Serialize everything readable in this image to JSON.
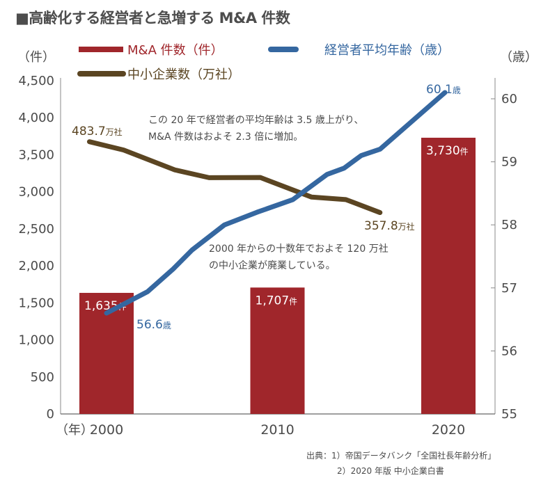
{
  "title": "■高齢化する経営者と急増する M&A 件数",
  "colors": {
    "ma": "#a0262b",
    "age": "#3567a0",
    "sme": "#5b4522",
    "axis": "#888888",
    "text": "#4a4a4a"
  },
  "legend": [
    {
      "label": "M&A 件数（件）",
      "color": "#a0262b"
    },
    {
      "label": "経営者平均年齢（歳）",
      "color": "#3567a0"
    },
    {
      "label": "中小企業数（万社）",
      "color": "#5b4522"
    }
  ],
  "annotations": {
    "note1_line1": "この 20 年で経営者の平均年齢は 3.5 歳上がり、",
    "note1_line2": "M&A 件数はおよそ 2.3 倍に増加。",
    "note2_line1": "2000 年からの十数年でおよそ 120 万社",
    "note2_line2": "の中小企業が廃業している。"
  },
  "source": {
    "line1": "出典：1）帝国データバンク「全国社長年齢分析」",
    "line2": "2）2020 年版 中小企業白書"
  },
  "chart_data": {
    "type": "bar+line",
    "x_unit_label": "（年）",
    "x_ticks": [
      "2000",
      "2010",
      "2020"
    ],
    "left_axis": {
      "label": "（件）",
      "ylim": [
        0,
        4500
      ],
      "ticks": [
        "0",
        "500",
        "1,000",
        "1,500",
        "2,000",
        "2,500",
        "3,000",
        "3,500",
        "4,000",
        "4,500"
      ]
    },
    "right_axis": {
      "label": "（歳）",
      "ylim": [
        55,
        60.3
      ],
      "ticks": [
        "55",
        "56",
        "57",
        "58",
        "59",
        "60"
      ]
    },
    "bars": {
      "name": "M&A 件数（件）",
      "x": [
        2000,
        2010,
        2020
      ],
      "values": [
        1635,
        1707,
        3730
      ],
      "labels": [
        {
          "num": "1,635",
          "unit": "件"
        },
        {
          "num": "1,707",
          "unit": "件"
        },
        {
          "num": "3,730",
          "unit": "件"
        }
      ]
    },
    "age_series": {
      "name": "経営者平均年齢（歳）",
      "axis": "right",
      "x": [
        2000,
        2002.4,
        2003.9,
        2005,
        2006.9,
        2008.8,
        2010.9,
        2012.9,
        2013.9,
        2014.9,
        2016,
        2019.8
      ],
      "values": [
        56.6,
        56.94,
        57.3,
        57.6,
        58.0,
        58.2,
        58.4,
        58.8,
        58.9,
        59.1,
        59.2,
        60.1
      ],
      "start_label": {
        "num": "56.6",
        "unit": "歳"
      },
      "end_label": {
        "num": "60.1",
        "unit": "歳"
      }
    },
    "sme_series": {
      "name": "中小企業数（万社）",
      "x": [
        1999,
        2001,
        2004,
        2006,
        2009,
        2012,
        2014,
        2016
      ],
      "values": [
        483.7,
        469.0,
        433.6,
        419.8,
        420.1,
        385.3,
        380.9,
        357.8
      ],
      "start_label": {
        "num": "483.7",
        "unit": "万社"
      },
      "end_label": {
        "num": "357.8",
        "unit": "万社"
      }
    },
    "grid": false,
    "legend_position": "top"
  }
}
